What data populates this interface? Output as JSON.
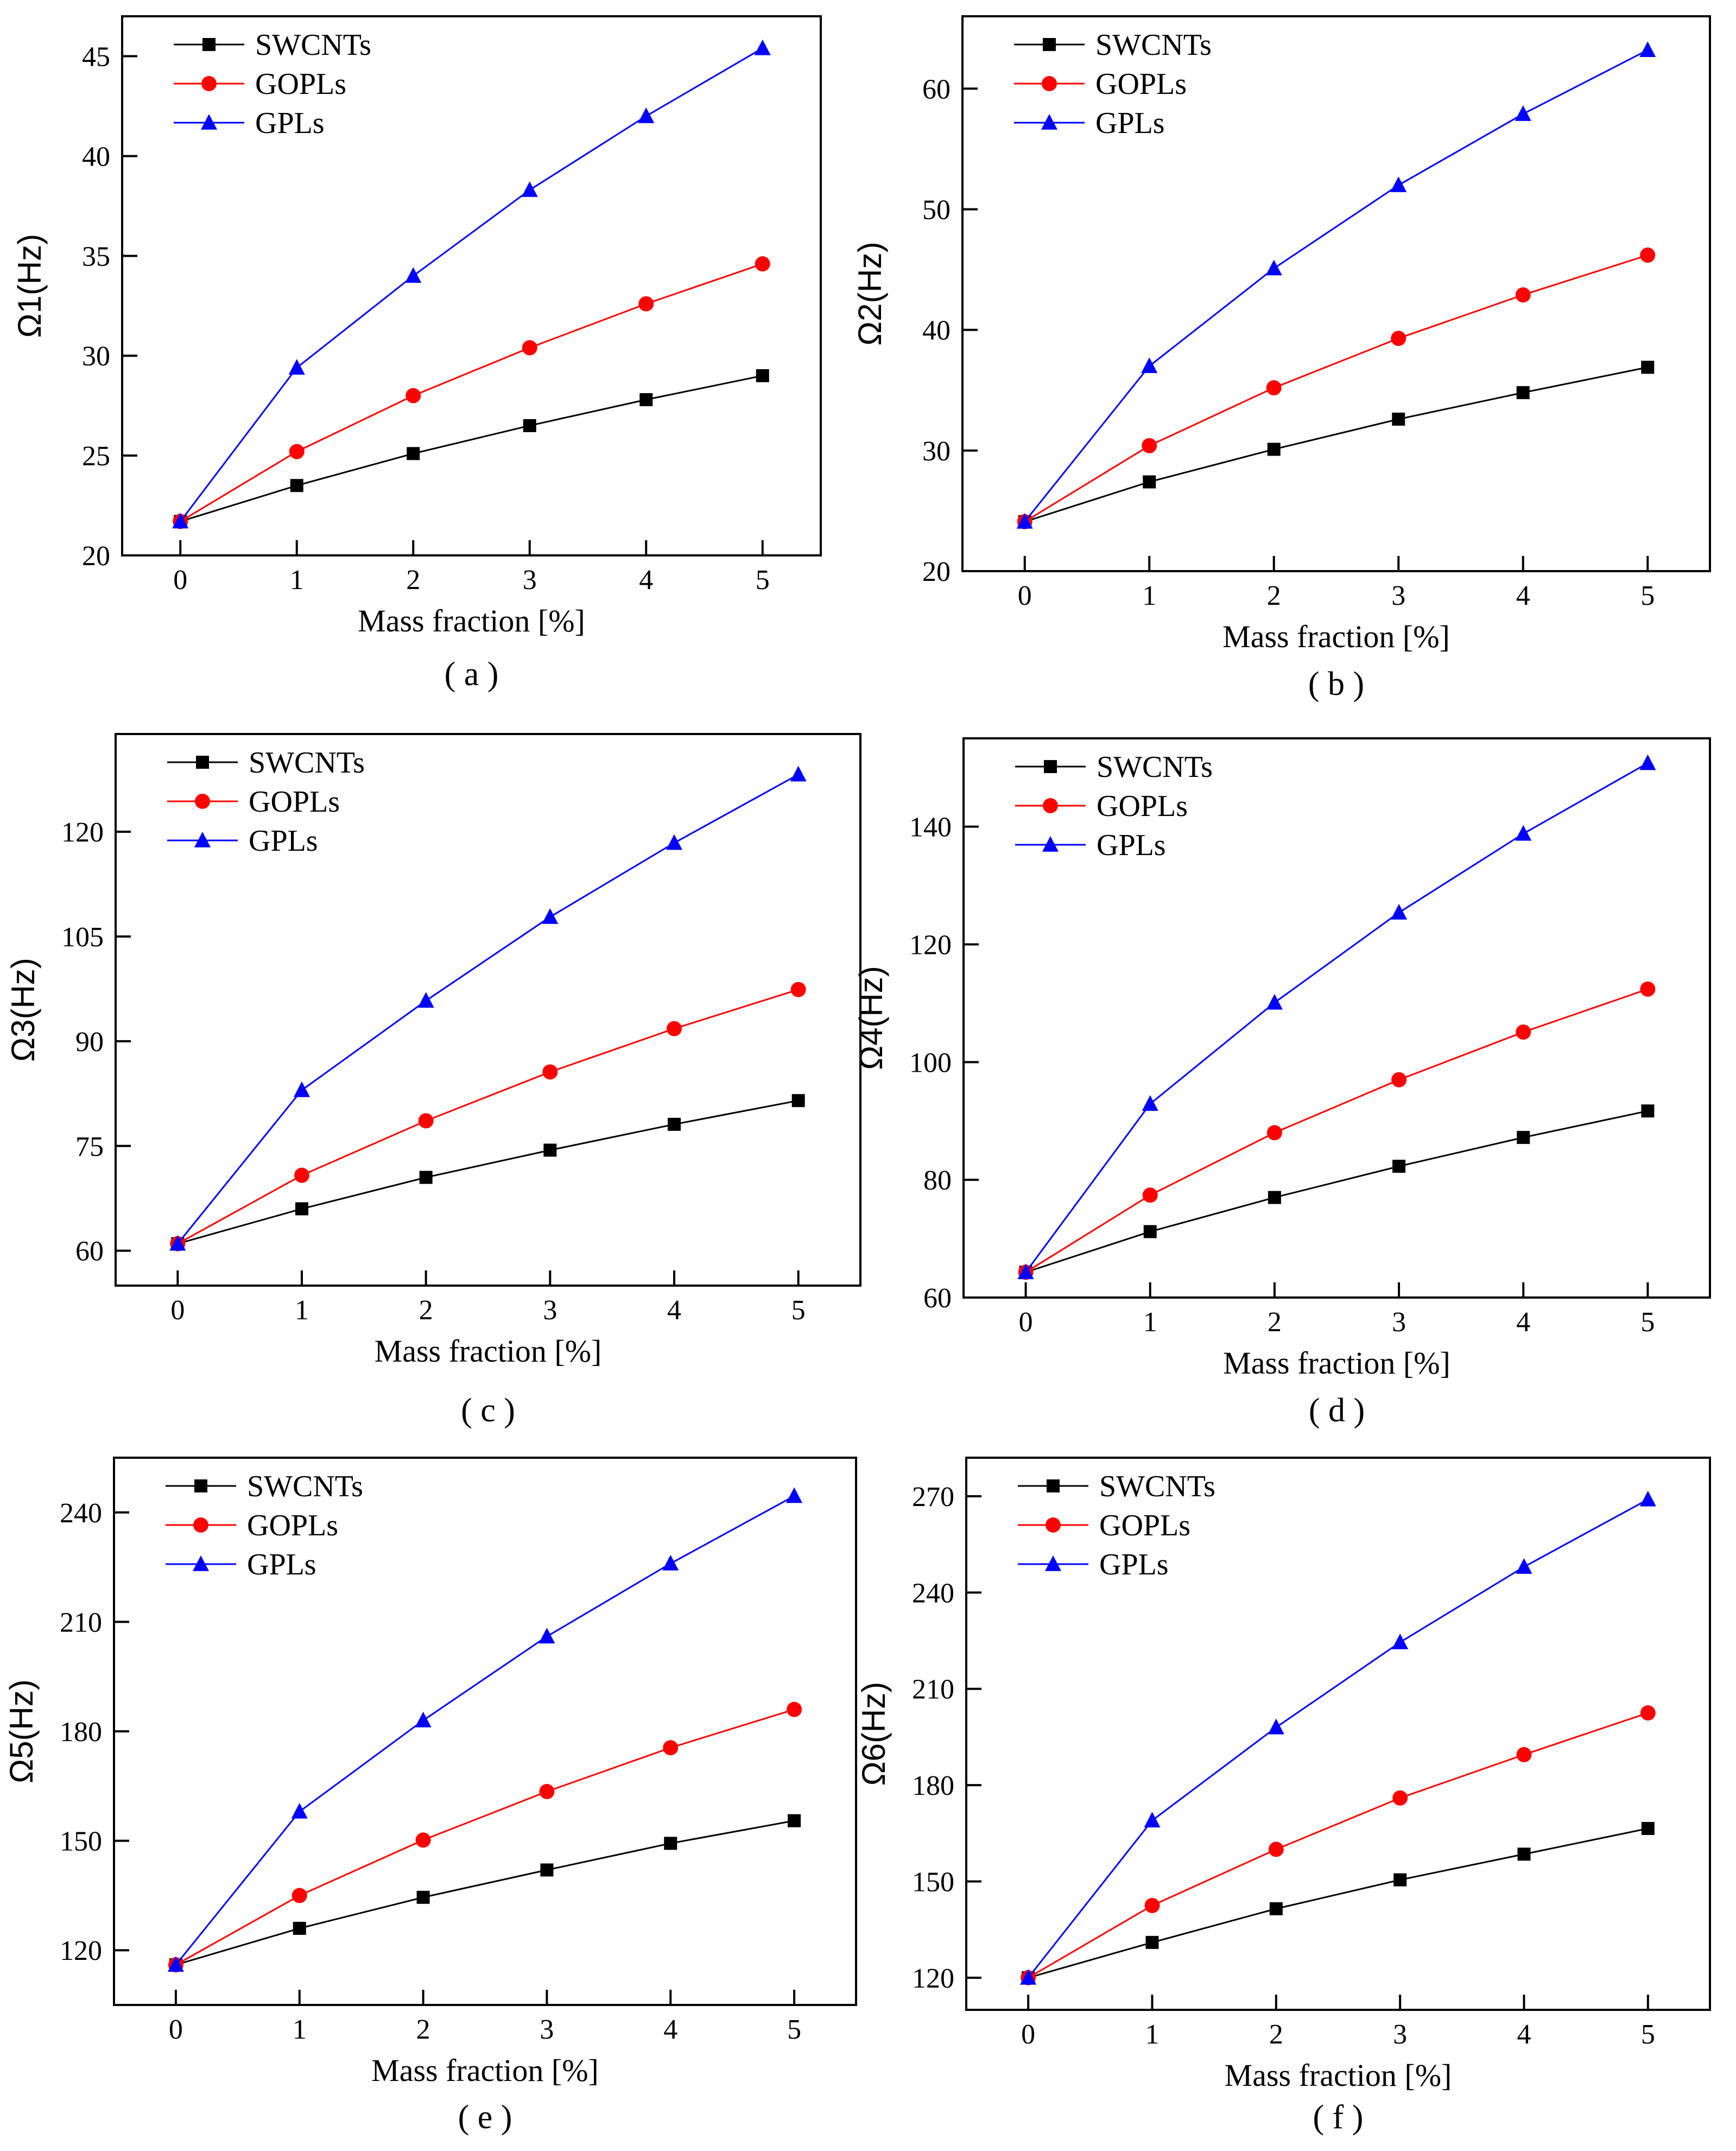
{
  "chart_data": [
    {
      "type": "line",
      "caption": "( a )",
      "xlabel": "Mass fraction [%]",
      "ylabel": "Ω1(Hz)",
      "x": [
        0,
        1,
        2,
        3,
        4,
        5
      ],
      "xlim": [
        -0.5,
        5.5
      ],
      "ylim": [
        20,
        47
      ],
      "yticks": [
        20,
        25,
        30,
        35,
        40,
        45
      ],
      "legend_position": "top-left",
      "series": [
        {
          "name": "SWCNTs",
          "color": "#000000",
          "marker": "square",
          "values": [
            21.7,
            23.5,
            25.1,
            26.5,
            27.8,
            29.0
          ]
        },
        {
          "name": "GOPLs",
          "color": "#ff0000",
          "marker": "circle",
          "values": [
            21.7,
            25.2,
            28.0,
            30.4,
            32.6,
            34.6
          ]
        },
        {
          "name": "GPLs",
          "color": "#0000ff",
          "marker": "triangle",
          "values": [
            21.7,
            29.4,
            34.0,
            38.3,
            42.0,
            45.4
          ]
        }
      ]
    },
    {
      "type": "line",
      "caption": "( b )",
      "xlabel": "Mass fraction [%]",
      "ylabel": "Ω2(Hz)",
      "x": [
        0,
        1,
        2,
        3,
        4,
        5
      ],
      "xlim": [
        -0.5,
        5.5
      ],
      "ylim": [
        20,
        66
      ],
      "yticks": [
        20,
        30,
        40,
        50,
        60
      ],
      "legend_position": "top-left",
      "series": [
        {
          "name": "SWCNTs",
          "color": "#000000",
          "marker": "square",
          "values": [
            24.1,
            27.4,
            30.1,
            32.6,
            34.8,
            36.9
          ]
        },
        {
          "name": "GOPLs",
          "color": "#ff0000",
          "marker": "circle",
          "values": [
            24.1,
            30.4,
            35.2,
            39.3,
            42.9,
            46.2
          ]
        },
        {
          "name": "GPLs",
          "color": "#0000ff",
          "marker": "triangle",
          "values": [
            24.1,
            37.0,
            45.1,
            52.0,
            57.9,
            63.2
          ]
        }
      ]
    },
    {
      "type": "line",
      "caption": "( c )",
      "xlabel": "Mass fraction [%]",
      "ylabel": "Ω3(Hz)",
      "x": [
        0,
        1,
        2,
        3,
        4,
        5
      ],
      "xlim": [
        -0.5,
        5.5
      ],
      "ylim": [
        55,
        134
      ],
      "yticks": [
        60,
        75,
        90,
        105,
        120
      ],
      "legend_position": "top-left",
      "series": [
        {
          "name": "SWCNTs",
          "color": "#000000",
          "marker": "square",
          "values": [
            61.0,
            66.0,
            70.5,
            74.4,
            78.1,
            81.5
          ]
        },
        {
          "name": "GOPLs",
          "color": "#ff0000",
          "marker": "circle",
          "values": [
            61.0,
            70.8,
            78.6,
            85.6,
            91.8,
            97.4
          ]
        },
        {
          "name": "GPLs",
          "color": "#0000ff",
          "marker": "triangle",
          "values": [
            61.0,
            83.0,
            95.8,
            107.8,
            118.4,
            128.2
          ]
        }
      ]
    },
    {
      "type": "line",
      "caption": "( d )",
      "xlabel": "Mass fraction [%]",
      "ylabel": "Ω4(Hz)",
      "x": [
        0,
        1,
        2,
        3,
        4,
        5
      ],
      "xlim": [
        -0.5,
        5.5
      ],
      "ylim": [
        60,
        155
      ],
      "yticks": [
        60,
        80,
        100,
        120,
        140
      ],
      "legend_position": "top-left",
      "series": [
        {
          "name": "SWCNTs",
          "color": "#000000",
          "marker": "square",
          "values": [
            64.3,
            71.2,
            77.0,
            82.3,
            87.2,
            91.7
          ]
        },
        {
          "name": "GOPLs",
          "color": "#ff0000",
          "marker": "circle",
          "values": [
            64.3,
            77.4,
            88.0,
            97.0,
            105.1,
            112.4
          ]
        },
        {
          "name": "GPLs",
          "color": "#0000ff",
          "marker": "triangle",
          "values": [
            64.3,
            92.9,
            110.1,
            125.4,
            138.8,
            150.8
          ]
        }
      ]
    },
    {
      "type": "line",
      "caption": "( e )",
      "xlabel": "Mass fraction [%]",
      "ylabel": "Ω5(Hz)",
      "x": [
        0,
        1,
        2,
        3,
        4,
        5
      ],
      "xlim": [
        -0.5,
        5.5
      ],
      "ylim": [
        105,
        255
      ],
      "yticks": [
        120,
        150,
        180,
        210,
        240
      ],
      "legend_position": "top-left",
      "series": [
        {
          "name": "SWCNTs",
          "color": "#000000",
          "marker": "square",
          "values": [
            116.0,
            126.0,
            134.5,
            142.0,
            149.3,
            155.5
          ]
        },
        {
          "name": "GOPLs",
          "color": "#ff0000",
          "marker": "circle",
          "values": [
            116.0,
            135.0,
            150.2,
            163.5,
            175.5,
            186.0
          ]
        },
        {
          "name": "GPLs",
          "color": "#0000ff",
          "marker": "triangle",
          "values": [
            116.0,
            158.0,
            183.0,
            206.0,
            226.0,
            244.5
          ]
        }
      ]
    },
    {
      "type": "line",
      "caption": "( f )",
      "xlabel": "Mass fraction [%]",
      "ylabel": "Ω6(Hz)",
      "x": [
        0,
        1,
        2,
        3,
        4,
        5
      ],
      "xlim": [
        -0.5,
        5.5
      ],
      "ylim": [
        110,
        282
      ],
      "yticks": [
        120,
        150,
        180,
        210,
        240,
        270
      ],
      "legend_position": "top-left",
      "series": [
        {
          "name": "SWCNTs",
          "color": "#000000",
          "marker": "square",
          "values": [
            120.0,
            131.0,
            141.5,
            150.5,
            158.5,
            166.5
          ]
        },
        {
          "name": "GOPLs",
          "color": "#ff0000",
          "marker": "circle",
          "values": [
            120.0,
            142.5,
            160.0,
            176.0,
            189.5,
            202.5
          ]
        },
        {
          "name": "GPLs",
          "color": "#0000ff",
          "marker": "triangle",
          "values": [
            120.0,
            169.0,
            198.0,
            224.5,
            248.0,
            269.0
          ]
        }
      ]
    }
  ]
}
